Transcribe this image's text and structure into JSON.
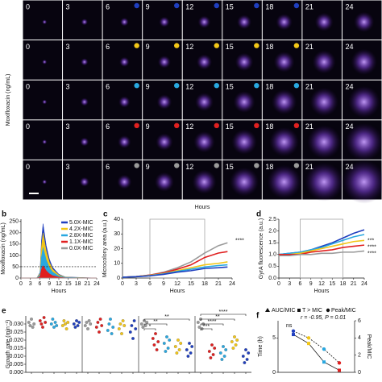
{
  "image_grid": {
    "ylabel": "Moxifloxacin (ng/mL)",
    "xlabel": "Hours",
    "time_labels": [
      "0",
      "3",
      "6",
      "9",
      "12",
      "15",
      "18",
      "21",
      "24"
    ],
    "row_colors": [
      "#1f3fbf",
      "#f2c618",
      "#29a8e0",
      "#e02020",
      "#9a9a9a"
    ]
  },
  "chart_data": [
    {
      "label": "b",
      "type": "area",
      "xlabel": "Hours",
      "ylabel": "Moxifloxacin (ng/mL)",
      "x": [
        0,
        5,
        6,
        6.5,
        7,
        8,
        9,
        10,
        12,
        14,
        24
      ],
      "series": [
        {
          "name": "5.0X-MIC",
          "color": "#1f3fbf",
          "values": [
            0,
            0,
            24,
            168,
            240,
            144,
            84,
            48,
            17,
            5,
            0
          ]
        },
        {
          "name": "4.2X-MIC",
          "color": "#f2c618",
          "values": [
            0,
            0,
            20,
            140,
            200,
            120,
            70,
            40,
            14,
            4,
            0
          ]
        },
        {
          "name": "2.8X-MIC",
          "color": "#29a8e0",
          "values": [
            0,
            0,
            14,
            95,
            135,
            81,
            47,
            27,
            9,
            3,
            0
          ]
        },
        {
          "name": "1.1X-MIC",
          "color": "#e02020",
          "values": [
            0,
            0,
            6,
            39,
            55,
            33,
            19,
            11,
            4,
            1,
            0
          ]
        },
        {
          "name": "0.0X-MIC",
          "color": "#9a9a9a",
          "values": [
            0,
            0,
            0,
            0,
            0,
            0,
            0,
            0,
            0,
            0,
            0
          ]
        }
      ],
      "xlim": [
        0,
        24
      ],
      "xticks": [
        0,
        3,
        6,
        9,
        12,
        15,
        18,
        21,
        24
      ],
      "ylim": [
        0,
        260
      ],
      "yticks": [
        0,
        50,
        100,
        150,
        200,
        250
      ],
      "hline": 50,
      "legend": "upper right"
    },
    {
      "label": "c",
      "type": "line",
      "xlabel": "Hours",
      "ylabel": "Microcolony area (a.u.)",
      "x": [
        0,
        3,
        6,
        9,
        12,
        15,
        18,
        21,
        23
      ],
      "series": [
        {
          "color": "#9a9a9a",
          "values": [
            0.5,
            1,
            2,
            4,
            7,
            11,
            17,
            22,
            24
          ]
        },
        {
          "color": "#e02020",
          "values": [
            0.5,
            1,
            2,
            3.5,
            6,
            9,
            14,
            17,
            18
          ]
        },
        {
          "color": "#f2c618",
          "values": [
            0.5,
            1,
            1.8,
            3,
            5,
            7,
            9,
            10,
            11
          ]
        },
        {
          "color": "#29a8e0",
          "values": [
            0.5,
            0.9,
            1.6,
            2.8,
            4.5,
            6,
            7.5,
            8.5,
            9
          ]
        },
        {
          "color": "#1f3fbf",
          "values": [
            0.5,
            0.9,
            1.5,
            2.5,
            4,
            5,
            6.5,
            7,
            7.5
          ]
        }
      ],
      "xlim": [
        0,
        24
      ],
      "xticks": [
        0,
        3,
        6,
        9,
        12,
        15,
        18,
        21,
        24
      ],
      "ylim": [
        0,
        40
      ],
      "yticks": [
        0,
        10,
        20,
        30,
        40
      ],
      "window": [
        6,
        18
      ],
      "annotations": [
        "****"
      ]
    },
    {
      "label": "d",
      "type": "line",
      "xlabel": "Hours",
      "ylabel": "GyrA fluorescence (a.u.)",
      "x": [
        0,
        3,
        6,
        9,
        12,
        15,
        18,
        21,
        24
      ],
      "series": [
        {
          "color": "#1f3fbf",
          "values": [
            1.0,
            1.05,
            1.1,
            1.2,
            1.35,
            1.5,
            1.7,
            1.9,
            2.05
          ]
        },
        {
          "color": "#29a8e0",
          "values": [
            1.0,
            1.05,
            1.1,
            1.2,
            1.3,
            1.45,
            1.6,
            1.75,
            1.85
          ]
        },
        {
          "color": "#f2c618",
          "values": [
            1.0,
            1.0,
            1.05,
            1.15,
            1.25,
            1.35,
            1.45,
            1.55,
            1.6
          ]
        },
        {
          "color": "#e02020",
          "values": [
            1.0,
            1.0,
            1.0,
            1.1,
            1.15,
            1.2,
            1.3,
            1.35,
            1.4
          ]
        },
        {
          "color": "#9a9a9a",
          "values": [
            0.95,
            0.95,
            1.0,
            1.0,
            1.05,
            1.05,
            1.1,
            1.1,
            1.15
          ]
        }
      ],
      "xlim": [
        0,
        24
      ],
      "xticks": [
        0,
        3,
        6,
        9,
        12,
        15,
        18,
        21,
        24
      ],
      "ylim": [
        0,
        2.5
      ],
      "yticks": [
        {
          "value": 0,
          "label": "0.0"
        },
        {
          "value": 0.5,
          "label": "0.5"
        },
        {
          "value": 1,
          "label": "1.0"
        },
        {
          "value": 1.5,
          "label": "1.5"
        },
        {
          "value": 2,
          "label": "2.0"
        },
        {
          "value": 2.5,
          "label": "2.5"
        }
      ],
      "window": [
        6,
        18
      ],
      "annotations": [
        "***",
        "****",
        "****"
      ]
    },
    {
      "label": "e",
      "type": "strip",
      "ylabel": "Growth rate (min⁻¹)",
      "ylim": [
        0,
        0.035
      ],
      "yticks": [
        {
          "value": 0,
          "label": "0.000"
        },
        {
          "value": 0.005,
          "label": "0.005"
        },
        {
          "value": 0.01,
          "label": "0.010"
        },
        {
          "value": 0.015,
          "label": "0.015"
        },
        {
          "value": 0.02,
          "label": "0.020"
        },
        {
          "value": 0.025,
          "label": "0.025"
        },
        {
          "value": 0.03,
          "label": "0.030"
        }
      ],
      "columns": [
        {
          "color": "#9a9a9a",
          "values": [
            0.031,
            0.029,
            0.033,
            0.028,
            0.03
          ]
        },
        {
          "color": "#e02020",
          "values": [
            0.032,
            0.03,
            0.028,
            0.034,
            0.031
          ]
        },
        {
          "color": "#29a8e0",
          "values": [
            0.03,
            0.033,
            0.028,
            0.031,
            0.029
          ]
        },
        {
          "color": "#f2c618",
          "values": [
            0.029,
            0.032,
            0.03,
            0.027,
            0.031
          ]
        },
        {
          "color": "#1f3fbf",
          "values": [
            0.03,
            0.028,
            0.032,
            0.029,
            0.031
          ]
        },
        {
          "color": "#9a9a9a",
          "values": [
            0.029,
            0.031,
            0.027,
            0.032,
            0.03
          ]
        },
        {
          "color": "#e02020",
          "values": [
            0.028,
            0.031,
            0.025,
            0.033,
            0.029
          ]
        },
        {
          "color": "#29a8e0",
          "values": [
            0.026,
            0.03,
            0.033,
            0.024,
            0.028
          ]
        },
        {
          "color": "#f2c618",
          "values": [
            0.027,
            0.03,
            0.024,
            0.032,
            0.029
          ]
        },
        {
          "color": "#1f3fbf",
          "values": [
            0.025,
            0.029,
            0.021,
            0.032,
            0.027
          ]
        },
        {
          "color": "#9a9a9a",
          "values": [
            0.03,
            0.028,
            0.032,
            0.029,
            0.031
          ]
        },
        {
          "color": "#e02020",
          "values": [
            0.021,
            0.017,
            0.024,
            0.014,
            0.019
          ]
        },
        {
          "color": "#29a8e0",
          "values": [
            0.018,
            0.013,
            0.022,
            0.015,
            0.02
          ]
        },
        {
          "color": "#f2c618",
          "values": [
            0.016,
            0.012,
            0.02,
            0.014,
            0.018
          ]
        },
        {
          "color": "#1f3fbf",
          "values": [
            0.014,
            0.01,
            0.018,
            0.012,
            0.016
          ]
        },
        {
          "color": "#9a9a9a",
          "values": [
            0.031,
            0.028,
            0.033,
            0.027,
            0.03
          ]
        },
        {
          "color": "#e02020",
          "values": [
            0.013,
            0.009,
            0.017,
            0.011,
            0.015
          ]
        },
        {
          "color": "#29a8e0",
          "values": [
            0.012,
            0.008,
            0.016,
            0.01,
            0.014
          ]
        },
        {
          "color": "#f2c618",
          "values": [
            0.019,
            0.015,
            0.022,
            0.017,
            0.02
          ]
        },
        {
          "color": "#1f3fbf",
          "values": [
            0.01,
            0.006,
            0.014,
            0.008,
            0.012
          ]
        }
      ],
      "annotations": [
        "*",
        "**",
        "**",
        "***",
        "****",
        "**",
        "****"
      ]
    },
    {
      "label": "f",
      "type": "scatter",
      "ylabel": "Time (h)",
      "y2label": "Peak/MIC",
      "x_legend": "AUC/MIC",
      "xlim": [
        0,
        5
      ],
      "ylim": [
        0,
        7.5
      ],
      "yticks": [
        0,
        5
      ],
      "y2lim": [
        0,
        6
      ],
      "y2ticks": [
        0,
        2,
        4,
        6
      ],
      "series": [
        {
          "name": "T > MIC",
          "marker": "square",
          "x": [
            1,
            2,
            3,
            4
          ],
          "values": [
            5.5,
            4.2,
            1.5,
            0.3
          ],
          "colors": [
            "#1f3fbf",
            "#f2c618",
            "#29a8e0",
            "#e02020"
          ]
        },
        {
          "name": "Peak/MIC",
          "marker": "circle",
          "axis": "y2",
          "x": [
            1,
            2,
            3,
            4
          ],
          "values": [
            4.8,
            4.0,
            2.7,
            1.1
          ],
          "colors": [
            "#1f3fbf",
            "#f2c618",
            "#29a8e0",
            "#e02020"
          ]
        }
      ],
      "annotations": [
        "ns",
        "r = -0.95, P = 0.01"
      ]
    }
  ]
}
